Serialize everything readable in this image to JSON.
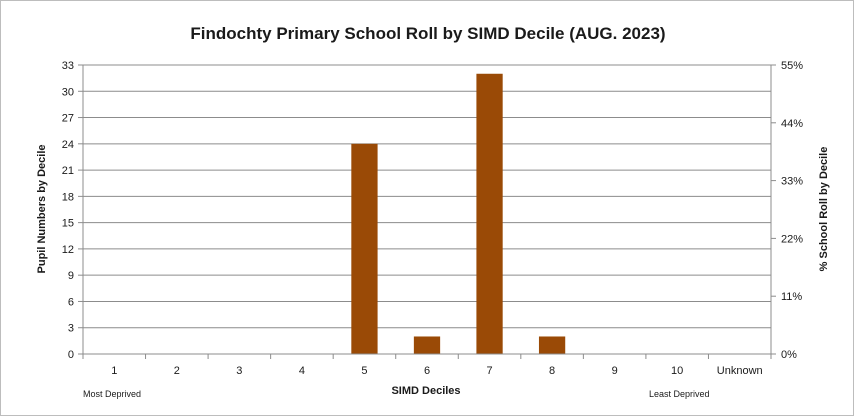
{
  "chart_data": {
    "type": "bar",
    "title": "Findochty Primary School Roll by SIMD Decile (AUG. 2023)",
    "xlabel": "SIMD Deciles",
    "ylabel": "Pupil Numbers by Decile",
    "y2label": "% School Roll by Decile",
    "categories": [
      "1",
      "2",
      "3",
      "4",
      "5",
      "6",
      "7",
      "8",
      "9",
      "10",
      "Unknown"
    ],
    "values": [
      0,
      0,
      0,
      0,
      24,
      2,
      32,
      2,
      0,
      0,
      0
    ],
    "ylim": [
      0,
      33
    ],
    "yticks": [
      "0",
      "3",
      "6",
      "9",
      "12",
      "15",
      "18",
      "21",
      "24",
      "27",
      "30",
      "33"
    ],
    "y2lim": [
      0,
      55
    ],
    "y2ticks": [
      "0%",
      "11%",
      "22%",
      "33%",
      "44%",
      "55%"
    ],
    "grid": true,
    "bar_color": "#9a4a06",
    "annotations": {
      "left": "Most Deprived",
      "right": "Least Deprived"
    }
  }
}
